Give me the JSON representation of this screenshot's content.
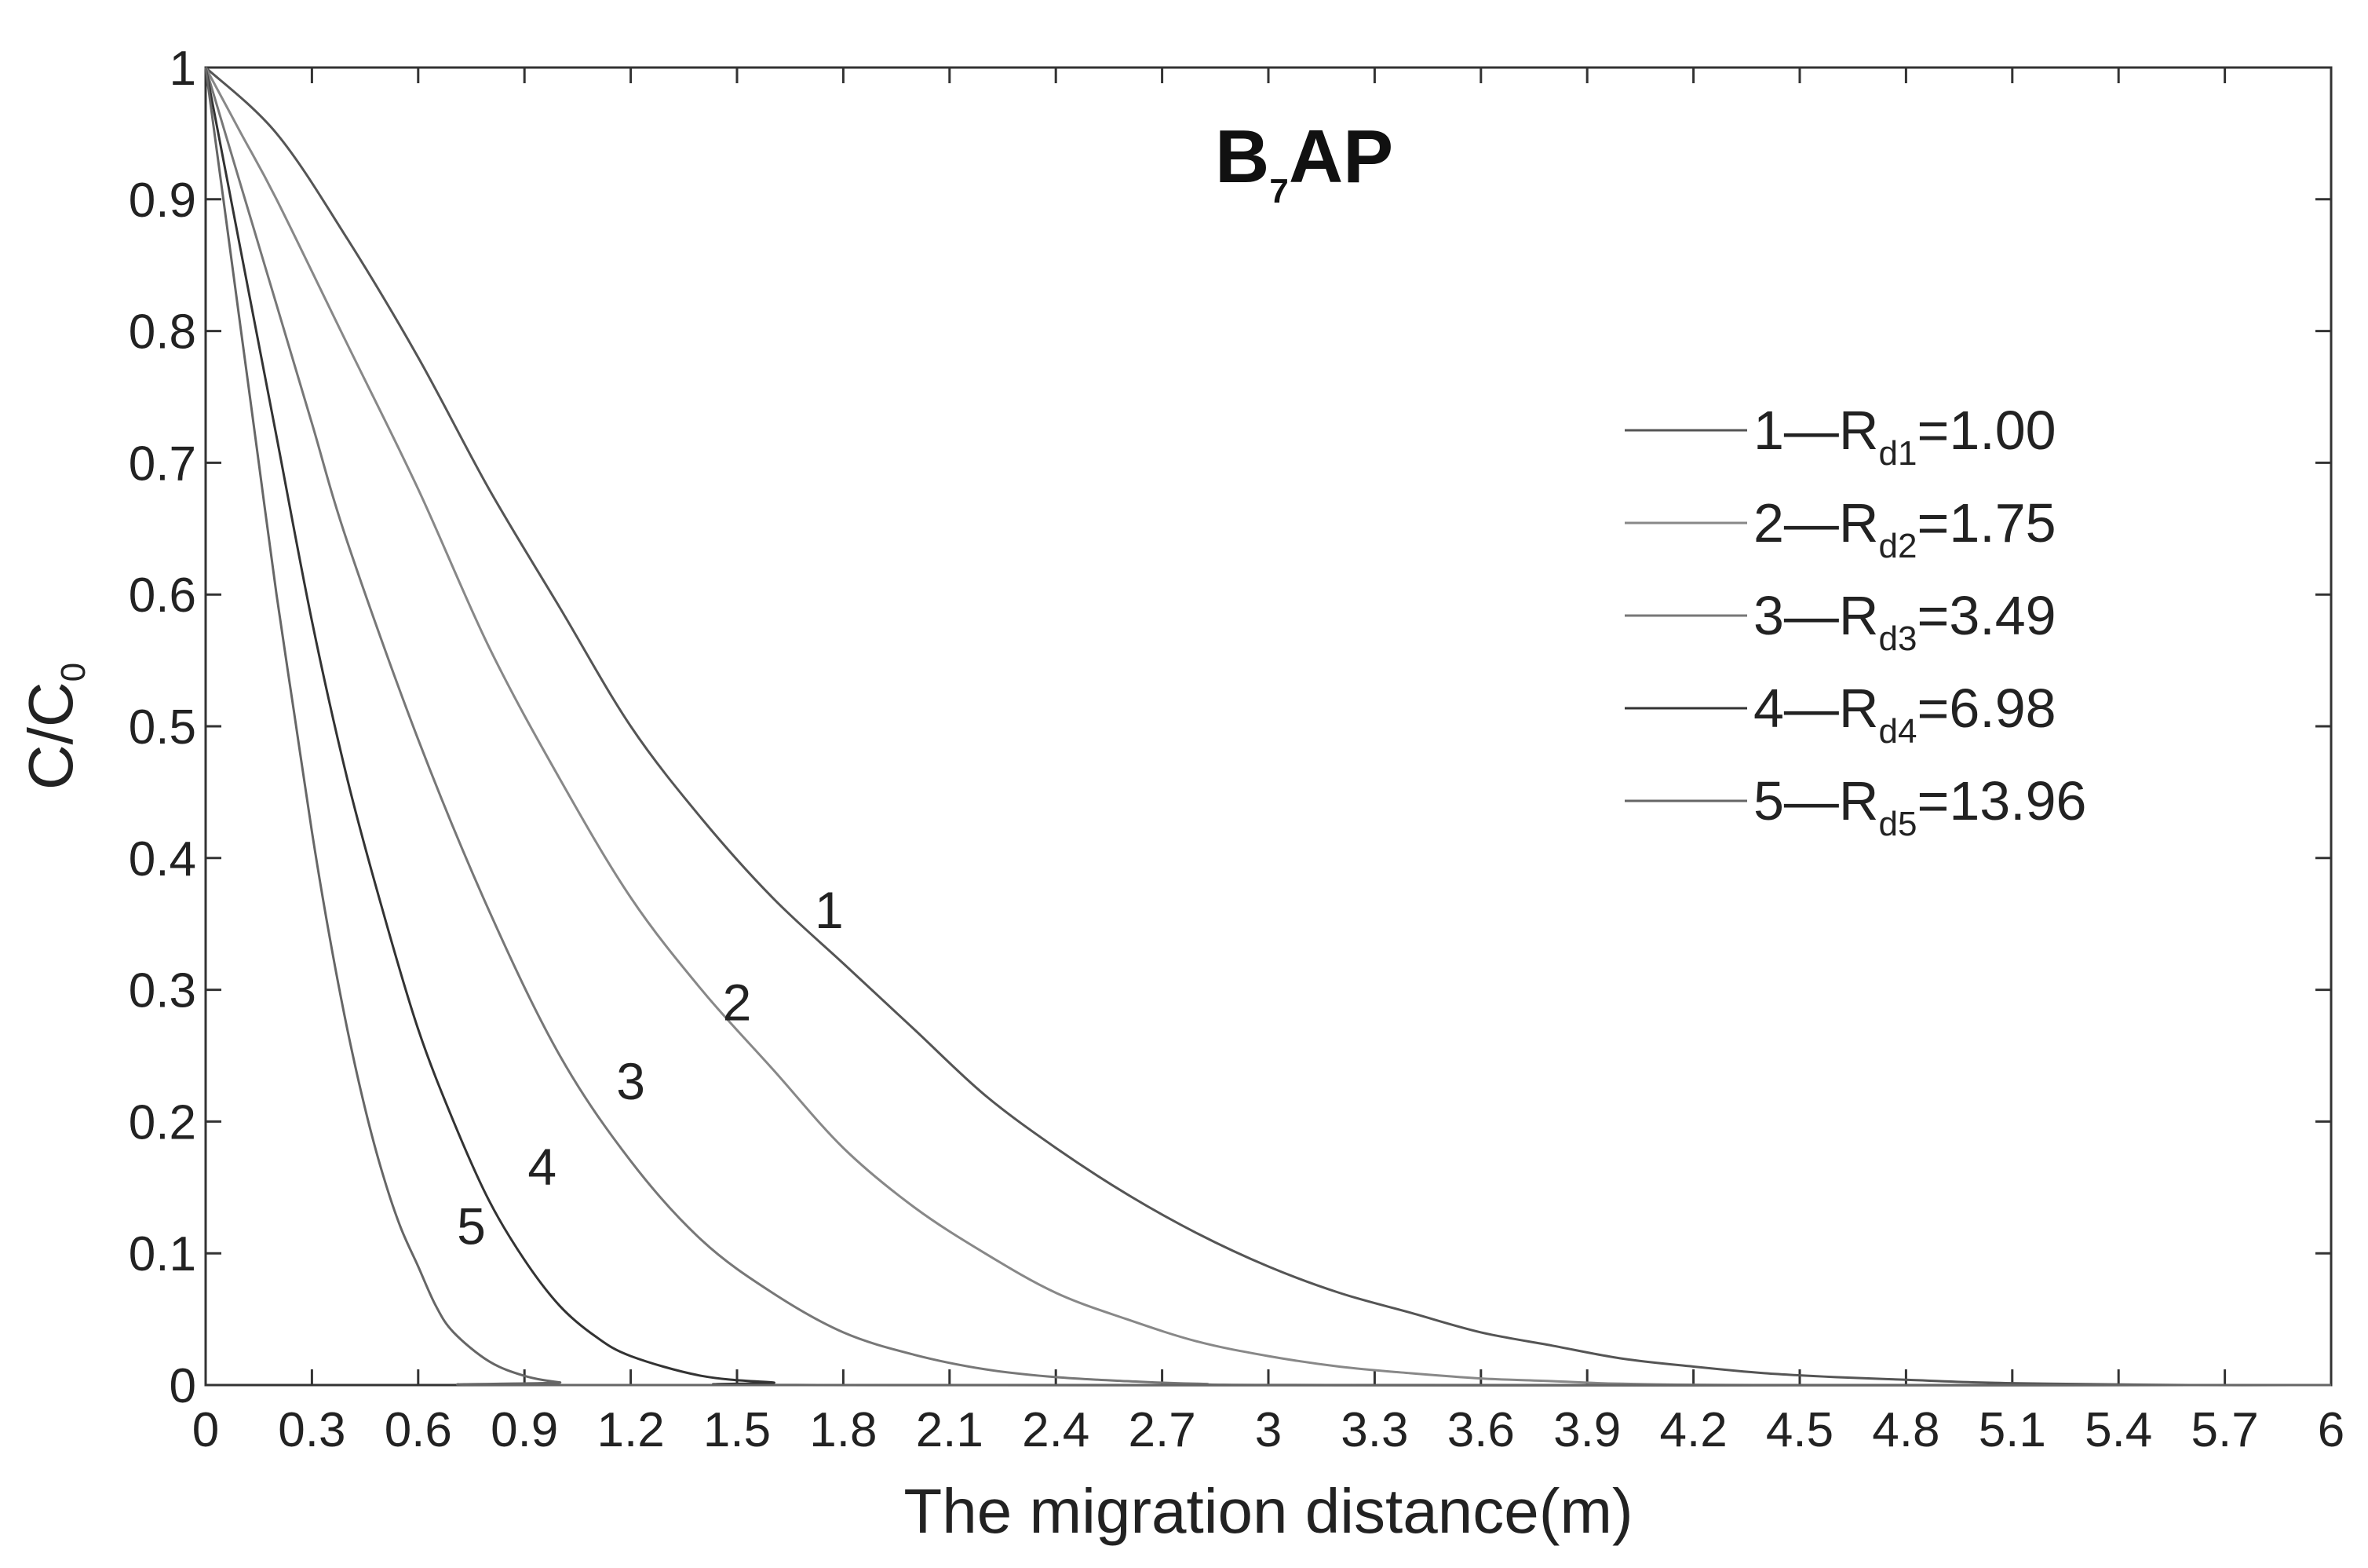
{
  "chart_data": {
    "type": "line",
    "title": {
      "main": "B",
      "sub": "7",
      "rest": "AP"
    },
    "xlabel": "The migration distance(m)",
    "ylabel": {
      "main": "C/C",
      "sub": "0"
    },
    "xlim": [
      0,
      6
    ],
    "ylim": [
      0,
      1
    ],
    "xticks": [
      "0",
      "0.3",
      "0.6",
      "0.9",
      "1.2",
      "1.5",
      "1.8",
      "2.1",
      "2.4",
      "2.7",
      "3",
      "3.3",
      "3.6",
      "3.9",
      "4.2",
      "4.5",
      "4.8",
      "5.1",
      "5.4",
      "5.7",
      "6"
    ],
    "yticks": [
      "0",
      "0.1",
      "0.2",
      "0.3",
      "0.4",
      "0.5",
      "0.6",
      "0.7",
      "0.8",
      "0.9",
      "1"
    ],
    "grid": false,
    "legend_position": "right",
    "series": [
      {
        "name": "1",
        "legend_prefix": "1—R",
        "legend_sub": "d1",
        "legend_value": "=1.00",
        "color": "#555555",
        "label": "1",
        "label_at": [
          1.76,
          0.36
        ],
        "points": [
          [
            0,
            1.0
          ],
          [
            0.2,
            0.95
          ],
          [
            0.4,
            0.87
          ],
          [
            0.6,
            0.78
          ],
          [
            0.8,
            0.68
          ],
          [
            1.0,
            0.59
          ],
          [
            1.2,
            0.5
          ],
          [
            1.4,
            0.43
          ],
          [
            1.6,
            0.37
          ],
          [
            1.8,
            0.32
          ],
          [
            2.0,
            0.27
          ],
          [
            2.2,
            0.22
          ],
          [
            2.4,
            0.18
          ],
          [
            2.6,
            0.145
          ],
          [
            2.8,
            0.115
          ],
          [
            3.0,
            0.09
          ],
          [
            3.2,
            0.07
          ],
          [
            3.4,
            0.055
          ],
          [
            3.6,
            0.04
          ],
          [
            3.8,
            0.03
          ],
          [
            4.0,
            0.02
          ],
          [
            4.2,
            0.014
          ],
          [
            4.4,
            0.009
          ],
          [
            4.6,
            0.006
          ],
          [
            4.8,
            0.004
          ],
          [
            5.0,
            0.002
          ],
          [
            5.2,
            0.001
          ],
          [
            5.6,
            0.0
          ],
          [
            6.0,
            0.0
          ]
        ]
      },
      {
        "name": "2",
        "legend_prefix": "2—R",
        "legend_sub": "d2",
        "legend_value": "=1.75",
        "color": "#888888",
        "label": "2",
        "label_at": [
          1.5,
          0.29
        ],
        "points": [
          [
            0,
            1.0
          ],
          [
            0.1,
            0.95
          ],
          [
            0.2,
            0.9
          ],
          [
            0.4,
            0.79
          ],
          [
            0.6,
            0.68
          ],
          [
            0.8,
            0.56
          ],
          [
            1.0,
            0.46
          ],
          [
            1.2,
            0.37
          ],
          [
            1.4,
            0.3
          ],
          [
            1.6,
            0.24
          ],
          [
            1.8,
            0.18
          ],
          [
            2.0,
            0.135
          ],
          [
            2.2,
            0.1
          ],
          [
            2.4,
            0.07
          ],
          [
            2.6,
            0.05
          ],
          [
            2.8,
            0.033
          ],
          [
            3.0,
            0.022
          ],
          [
            3.2,
            0.014
          ],
          [
            3.4,
            0.009
          ],
          [
            3.6,
            0.005
          ],
          [
            3.8,
            0.003
          ],
          [
            4.0,
            0.001
          ],
          [
            4.4,
            0.0
          ],
          [
            6.0,
            0.0
          ]
        ]
      },
      {
        "name": "3",
        "legend_prefix": "3—R",
        "legend_sub": "d3",
        "legend_value": "=3.49",
        "color": "#777777",
        "label": "3",
        "label_at": [
          1.2,
          0.23
        ],
        "points": [
          [
            0,
            1.0
          ],
          [
            0.1,
            0.91
          ],
          [
            0.2,
            0.82
          ],
          [
            0.3,
            0.73
          ],
          [
            0.4,
            0.64
          ],
          [
            0.6,
            0.49
          ],
          [
            0.8,
            0.36
          ],
          [
            1.0,
            0.25
          ],
          [
            1.2,
            0.17
          ],
          [
            1.4,
            0.11
          ],
          [
            1.6,
            0.07
          ],
          [
            1.8,
            0.04
          ],
          [
            2.0,
            0.023
          ],
          [
            2.2,
            0.012
          ],
          [
            2.4,
            0.006
          ],
          [
            2.6,
            0.003
          ],
          [
            2.8,
            0.001
          ],
          [
            3.2,
            0.0
          ],
          [
            6.0,
            0.0
          ]
        ]
      },
      {
        "name": "4",
        "legend_prefix": "4—R",
        "legend_sub": "d4",
        "legend_value": "=6.98",
        "color": "#333333",
        "label": "4",
        "label_at": [
          0.95,
          0.165
        ],
        "points": [
          [
            0,
            1.0
          ],
          [
            0.1,
            0.86
          ],
          [
            0.2,
            0.72
          ],
          [
            0.3,
            0.58
          ],
          [
            0.4,
            0.46
          ],
          [
            0.5,
            0.36
          ],
          [
            0.6,
            0.27
          ],
          [
            0.7,
            0.2
          ],
          [
            0.8,
            0.14
          ],
          [
            0.9,
            0.095
          ],
          [
            1.0,
            0.06
          ],
          [
            1.1,
            0.037
          ],
          [
            1.2,
            0.022
          ],
          [
            1.4,
            0.007
          ],
          [
            1.6,
            0.002
          ],
          [
            1.8,
            0.0
          ],
          [
            6.0,
            0.0
          ]
        ]
      },
      {
        "name": "5",
        "legend_prefix": "5—R",
        "legend_sub": "d5",
        "legend_value": "=13.96",
        "color": "#666666",
        "label": "5",
        "label_at": [
          0.75,
          0.12
        ],
        "points": [
          [
            0,
            1.0
          ],
          [
            0.05,
            0.9
          ],
          [
            0.1,
            0.8
          ],
          [
            0.15,
            0.7
          ],
          [
            0.2,
            0.6
          ],
          [
            0.25,
            0.51
          ],
          [
            0.3,
            0.42
          ],
          [
            0.35,
            0.34
          ],
          [
            0.4,
            0.27
          ],
          [
            0.45,
            0.21
          ],
          [
            0.5,
            0.16
          ],
          [
            0.55,
            0.12
          ],
          [
            0.6,
            0.09
          ],
          [
            0.65,
            0.06
          ],
          [
            0.7,
            0.04
          ],
          [
            0.8,
            0.018
          ],
          [
            0.9,
            0.007
          ],
          [
            1.0,
            0.002
          ],
          [
            1.1,
            0.0
          ],
          [
            6.0,
            0.0
          ]
        ]
      }
    ]
  }
}
